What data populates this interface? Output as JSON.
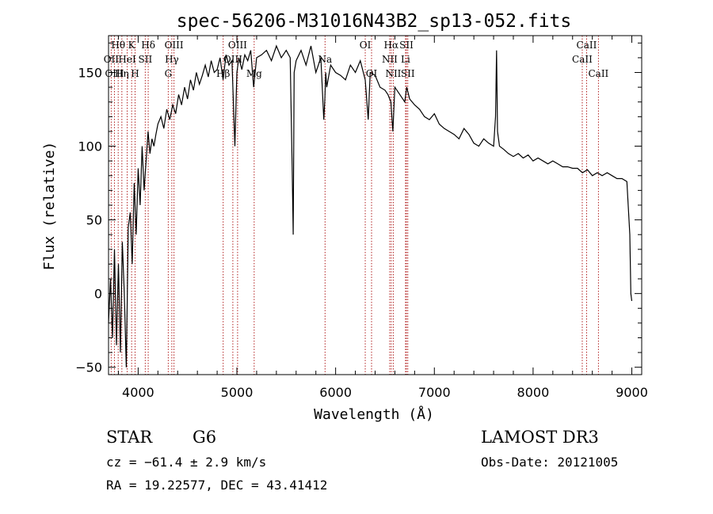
{
  "chart_data": {
    "type": "line",
    "title": "spec-56206-M31016N43B2_sp13-052.fits",
    "xlabel": "Wavelength (Å)",
    "ylabel": "Flux (relative)",
    "xlim": [
      3700,
      9100
    ],
    "ylim": [
      -55,
      175
    ],
    "xticks": [
      4000,
      5000,
      6000,
      7000,
      8000,
      9000
    ],
    "yticks": [
      -50,
      0,
      50,
      100,
      150
    ],
    "grid": false,
    "colors": {
      "spectrum": "#000000",
      "lines": "#b22222"
    },
    "series": [
      {
        "x": [
          3700,
          3720,
          3740,
          3760,
          3780,
          3800,
          3820,
          3840,
          3860,
          3880,
          3900,
          3920,
          3940,
          3960,
          3980,
          4000,
          4020,
          4040,
          4060,
          4080,
          4100,
          4120,
          4140,
          4160,
          4180,
          4200,
          4230,
          4260,
          4290,
          4320,
          4350,
          4380,
          4410,
          4440,
          4470,
          4500,
          4530,
          4560,
          4590,
          4620,
          4650,
          4680,
          4710,
          4740,
          4770,
          4800,
          4830,
          4860,
          4890,
          4920,
          4950,
          4980,
          5000,
          5020,
          5050,
          5080,
          5110,
          5140,
          5170,
          5200,
          5250,
          5300,
          5350,
          5400,
          5450,
          5500,
          5540,
          5560,
          5570,
          5580,
          5600,
          5650,
          5700,
          5750,
          5800,
          5850,
          5880,
          5890,
          5900,
          5910,
          5950,
          6000,
          6050,
          6100,
          6150,
          6200,
          6250,
          6300,
          6330,
          6350,
          6400,
          6450,
          6500,
          6530,
          6560,
          6580,
          6600,
          6650,
          6700,
          6720,
          6750,
          6800,
          6850,
          6900,
          6950,
          7000,
          7050,
          7100,
          7150,
          7200,
          7250,
          7300,
          7350,
          7400,
          7450,
          7500,
          7550,
          7600,
          7620,
          7630,
          7640,
          7660,
          7700,
          7750,
          7800,
          7850,
          7900,
          7950,
          8000,
          8050,
          8100,
          8150,
          8200,
          8250,
          8300,
          8350,
          8400,
          8450,
          8500,
          8550,
          8600,
          8650,
          8700,
          8750,
          8800,
          8850,
          8900,
          8950,
          8980,
          8990,
          9000
        ],
        "values": [
          -20,
          10,
          -30,
          30,
          -35,
          20,
          -40,
          35,
          0,
          -50,
          45,
          55,
          20,
          75,
          40,
          85,
          60,
          100,
          70,
          90,
          110,
          95,
          105,
          100,
          108,
          115,
          120,
          112,
          125,
          118,
          128,
          122,
          135,
          128,
          140,
          132,
          145,
          138,
          150,
          142,
          148,
          155,
          147,
          158,
          150,
          152,
          160,
          145,
          162,
          155,
          158,
          100,
          150,
          160,
          152,
          162,
          158,
          165,
          140,
          160,
          162,
          165,
          158,
          168,
          160,
          165,
          160,
          85,
          40,
          150,
          158,
          165,
          155,
          168,
          150,
          160,
          118,
          130,
          150,
          140,
          155,
          150,
          148,
          145,
          155,
          150,
          158,
          145,
          118,
          150,
          148,
          140,
          138,
          135,
          130,
          110,
          140,
          135,
          130,
          140,
          132,
          128,
          125,
          120,
          118,
          122,
          115,
          112,
          110,
          108,
          105,
          112,
          108,
          102,
          100,
          105,
          102,
          100,
          120,
          165,
          110,
          100,
          98,
          95,
          93,
          95,
          92,
          94,
          90,
          92,
          90,
          88,
          90,
          88,
          86,
          86,
          85,
          85,
          82,
          84,
          80,
          82,
          80,
          82,
          80,
          78,
          78,
          76,
          40,
          0,
          -5
        ]
      }
    ],
    "lines": [
      {
        "name": "Hθ",
        "wave": 3798,
        "row": 0
      },
      {
        "name": "Hη",
        "wave": 3835,
        "row": 2
      },
      {
        "name": "OII",
        "wave": 3727,
        "row": 1
      },
      {
        "name": "OIII",
        "wave": 3760,
        "row": 2
      },
      {
        "name": "HeI",
        "wave": 3889,
        "row": 1
      },
      {
        "name": "K",
        "wave": 3934,
        "row": 0
      },
      {
        "name": "H",
        "wave": 3969,
        "row": 2
      },
      {
        "name": "SII",
        "wave": 4072,
        "row": 1
      },
      {
        "name": "Hδ",
        "wave": 4102,
        "row": 0
      },
      {
        "name": "G",
        "wave": 4305,
        "row": 2
      },
      {
        "name": "Hγ",
        "wave": 4341,
        "row": 1
      },
      {
        "name": "OIII",
        "wave": 4363,
        "row": 0
      },
      {
        "name": "Hβ",
        "wave": 4861,
        "row": 2
      },
      {
        "name": "OIII",
        "wave": 4959,
        "row": 1
      },
      {
        "name": "OIII",
        "wave": 5007,
        "row": 0
      },
      {
        "name": "Mg",
        "wave": 5175,
        "row": 2
      },
      {
        "name": "Na",
        "wave": 5893,
        "row": 1
      },
      {
        "name": "OI",
        "wave": 6300,
        "row": 0
      },
      {
        "name": "OI",
        "wave": 6364,
        "row": 2
      },
      {
        "name": "Hα",
        "wave": 6563,
        "row": 0
      },
      {
        "name": "NII",
        "wave": 6548,
        "row": 1
      },
      {
        "name": "NII",
        "wave": 6584,
        "row": 2
      },
      {
        "name": "Li",
        "wave": 6708,
        "row": 1
      },
      {
        "name": "SII",
        "wave": 6717,
        "row": 0
      },
      {
        "name": "SII",
        "wave": 6731,
        "row": 2
      },
      {
        "name": "CaII",
        "wave": 8498,
        "row": 1
      },
      {
        "name": "CaII",
        "wave": 8542,
        "row": 0
      },
      {
        "name": "CaII",
        "wave": 8662,
        "row": 2
      }
    ]
  },
  "info": {
    "class_label": "STAR",
    "subclass": "G6",
    "survey": "LAMOST DR3",
    "redshift": "cz = −61.4 ± 2.9 km/s",
    "obs_date": "Obs-Date: 20121005",
    "coords": "RA =  19.22577, DEC =  43.41412"
  }
}
